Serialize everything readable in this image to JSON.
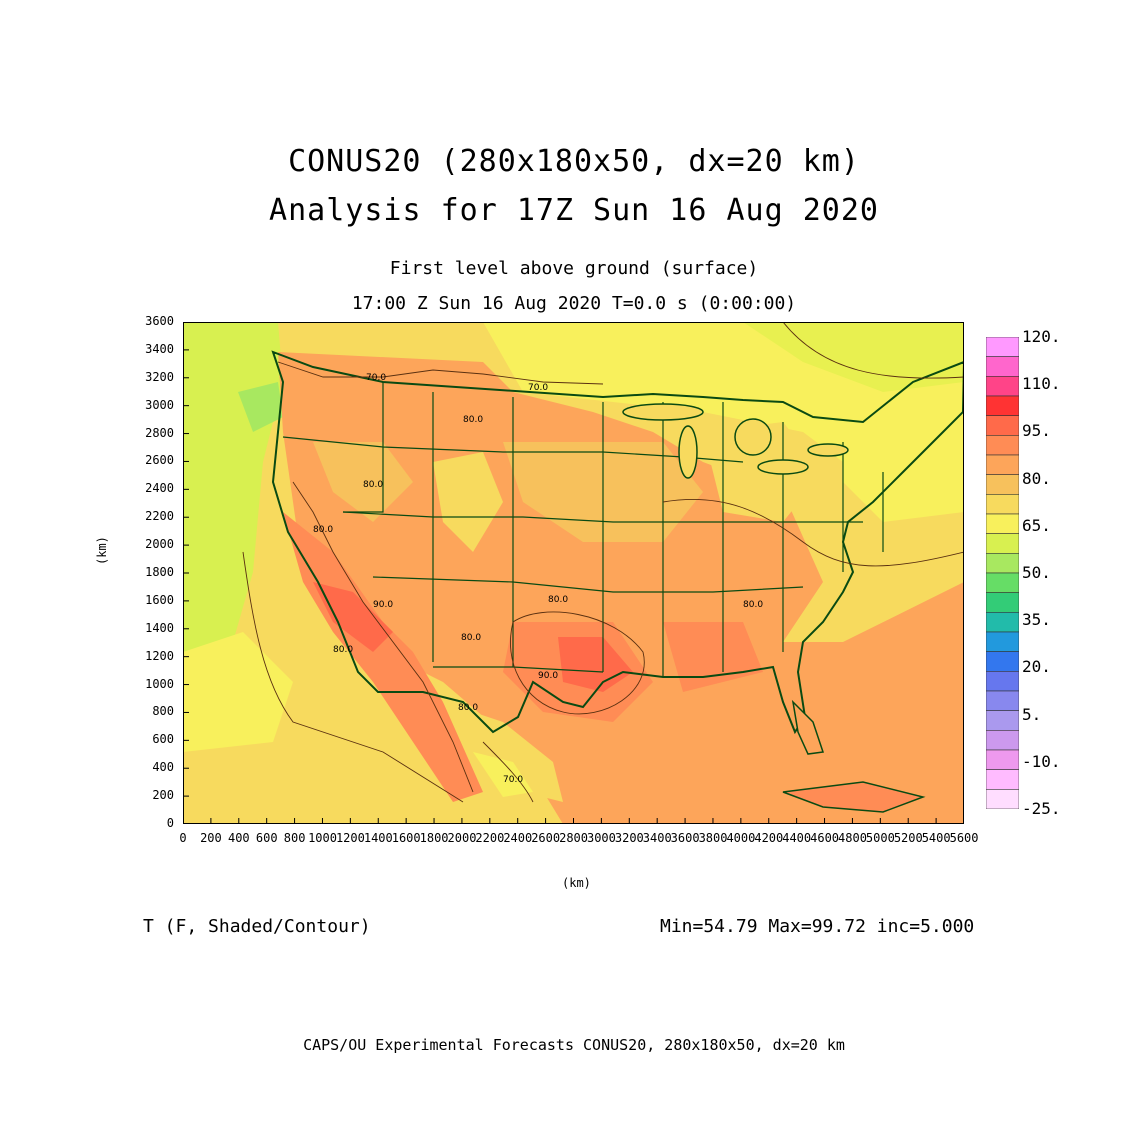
{
  "header": {
    "title_line1": "CONUS20 (280x180x50, dx=20 km)",
    "title_line2": "Analysis for 17Z Sun 16 Aug 2020",
    "level": "First level above ground (surface)",
    "valid_time": "17:00 Z Sun 16 Aug 2020    T=0.0 s (0:00:00)"
  },
  "axes": {
    "x_unit": "(km)",
    "y_unit": "(km)",
    "x_ticks": [
      "0",
      "200",
      "400",
      "600",
      "800",
      "1000",
      "1200",
      "1400",
      "1600",
      "1800",
      "2000",
      "2200",
      "2400",
      "2600",
      "2800",
      "3000",
      "3200",
      "3400",
      "3600",
      "3800",
      "4000",
      "4200",
      "4400",
      "4600",
      "4800",
      "5000",
      "5200",
      "5400",
      "5600"
    ],
    "y_ticks": [
      "0",
      "200",
      "400",
      "600",
      "800",
      "1000",
      "1200",
      "1400",
      "1600",
      "1800",
      "2000",
      "2200",
      "2400",
      "2600",
      "2800",
      "3000",
      "3200",
      "3400",
      "3600"
    ],
    "x_range": [
      0,
      5600
    ],
    "y_range": [
      0,
      3600
    ]
  },
  "contour_labels": [
    "70.0",
    "70.0",
    "80.0",
    "80.0",
    "80.0",
    "90.0",
    "80.0",
    "80.0",
    "90.0",
    "80.0",
    "70.0",
    "80.0",
    "80.0"
  ],
  "colorbar": {
    "labels": [
      "120.",
      "110.",
      "95.",
      "80.",
      "65.",
      "50.",
      "35.",
      "20.",
      "5.",
      "-10.",
      "-25."
    ],
    "colors": [
      "#ff99ff",
      "#ff66cc",
      "#ff4488",
      "#ff3333",
      "#ff6a4a",
      "#ff8c55",
      "#fda55a",
      "#f7c15c",
      "#f7da5e",
      "#f8f05c",
      "#d8f050",
      "#a8e860",
      "#66dd66",
      "#33cc77",
      "#22bbaa",
      "#2299dd",
      "#3377ee",
      "#6677ee",
      "#8888ee",
      "#aa99ee",
      "#cc99ee",
      "#ee99ee",
      "#ffbbff",
      "#ffddff"
    ]
  },
  "footer": {
    "variable": "T (F, Shaded/Contour)",
    "stats": "Min=54.79 Max=99.72 inc=5.000",
    "credit": "CAPS/OU Experimental Forecasts  CONUS20, 280x180x50, dx=20 km"
  }
}
